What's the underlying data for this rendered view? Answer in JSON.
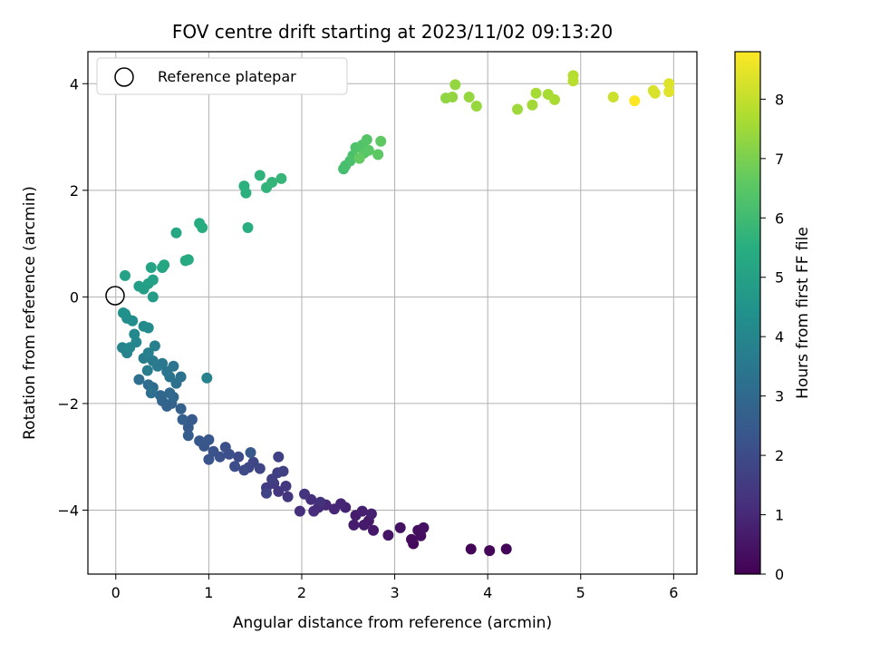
{
  "chart_data": {
    "type": "scatter",
    "title": "FOV centre drift starting at 2023/11/02 09:13:20",
    "xlabel": "Angular distance from reference (arcmin)",
    "ylabel": "Rotation from reference (arcmin)",
    "xlim": [
      -0.3,
      6.25
    ],
    "ylim": [
      -5.2,
      4.6
    ],
    "xticks": [
      "0",
      "1",
      "2",
      "3",
      "4",
      "5",
      "6"
    ],
    "yticks": [
      "−4",
      "−2",
      "0",
      "2",
      "4"
    ],
    "grid": true,
    "legend": {
      "position": "top-left",
      "entries": [
        "Reference platepar"
      ]
    },
    "reference_point": {
      "x": 0,
      "y": 0
    },
    "colorbar": {
      "label": "Hours from first FF file",
      "range": [
        0,
        8.8
      ],
      "ticks": [
        "0",
        "1",
        "2",
        "3",
        "4",
        "5",
        "6",
        "7",
        "8"
      ],
      "colormap": "viridis"
    },
    "points": [
      {
        "x": 3.82,
        "y": -4.73,
        "h": 0.08
      },
      {
        "x": 4.02,
        "y": -4.76,
        "h": 0.1
      },
      {
        "x": 4.2,
        "y": -4.73,
        "h": 0.12
      },
      {
        "x": 3.2,
        "y": -4.63,
        "h": 0.2
      },
      {
        "x": 3.18,
        "y": -4.55,
        "h": 0.25
      },
      {
        "x": 3.28,
        "y": -4.48,
        "h": 0.3
      },
      {
        "x": 3.25,
        "y": -4.38,
        "h": 0.35
      },
      {
        "x": 3.31,
        "y": -4.33,
        "h": 0.4
      },
      {
        "x": 3.06,
        "y": -4.33,
        "h": 0.45
      },
      {
        "x": 2.93,
        "y": -4.47,
        "h": 0.5
      },
      {
        "x": 2.77,
        "y": -4.38,
        "h": 0.55
      },
      {
        "x": 2.72,
        "y": -4.2,
        "h": 0.6
      },
      {
        "x": 2.67,
        "y": -4.28,
        "h": 0.62
      },
      {
        "x": 2.56,
        "y": -4.28,
        "h": 0.68
      },
      {
        "x": 2.58,
        "y": -4.1,
        "h": 0.7
      },
      {
        "x": 2.65,
        "y": -4.02,
        "h": 0.75
      },
      {
        "x": 2.75,
        "y": -4.07,
        "h": 0.8
      },
      {
        "x": 2.47,
        "y": -3.95,
        "h": 0.85
      },
      {
        "x": 2.42,
        "y": -3.88,
        "h": 0.9
      },
      {
        "x": 2.35,
        "y": -3.98,
        "h": 0.95
      },
      {
        "x": 2.26,
        "y": -3.9,
        "h": 1.0
      },
      {
        "x": 2.18,
        "y": -3.95,
        "h": 1.05
      },
      {
        "x": 2.13,
        "y": -4.02,
        "h": 1.1
      },
      {
        "x": 1.98,
        "y": -4.02,
        "h": 1.15
      },
      {
        "x": 2.1,
        "y": -3.8,
        "h": 1.2
      },
      {
        "x": 2.2,
        "y": -3.85,
        "h": 1.25
      },
      {
        "x": 2.03,
        "y": -3.7,
        "h": 1.3
      },
      {
        "x": 1.85,
        "y": -3.75,
        "h": 1.35
      },
      {
        "x": 1.75,
        "y": -3.65,
        "h": 1.4
      },
      {
        "x": 1.83,
        "y": -3.55,
        "h": 1.45
      },
      {
        "x": 1.7,
        "y": -3.5,
        "h": 1.5
      },
      {
        "x": 1.62,
        "y": -3.58,
        "h": 1.55
      },
      {
        "x": 1.68,
        "y": -3.42,
        "h": 1.6
      },
      {
        "x": 1.74,
        "y": -3.3,
        "h": 1.65
      },
      {
        "x": 1.8,
        "y": -3.27,
        "h": 1.68
      },
      {
        "x": 1.75,
        "y": -3.0,
        "h": 1.7
      },
      {
        "x": 1.62,
        "y": -3.68,
        "h": 1.75
      },
      {
        "x": 1.55,
        "y": -3.22,
        "h": 1.8
      },
      {
        "x": 1.48,
        "y": -3.1,
        "h": 1.85
      },
      {
        "x": 1.43,
        "y": -3.2,
        "h": 1.9
      },
      {
        "x": 1.38,
        "y": -3.25,
        "h": 1.95
      },
      {
        "x": 1.32,
        "y": -3.0,
        "h": 2.0
      },
      {
        "x": 1.28,
        "y": -3.18,
        "h": 2.05
      },
      {
        "x": 1.22,
        "y": -2.95,
        "h": 2.1
      },
      {
        "x": 1.18,
        "y": -2.82,
        "h": 2.15
      },
      {
        "x": 1.12,
        "y": -3.0,
        "h": 2.2
      },
      {
        "x": 1.05,
        "y": -2.9,
        "h": 2.25
      },
      {
        "x": 1.0,
        "y": -3.05,
        "h": 2.3
      },
      {
        "x": 0.95,
        "y": -2.8,
        "h": 2.35
      },
      {
        "x": 0.9,
        "y": -2.7,
        "h": 2.4
      },
      {
        "x": 1.0,
        "y": -2.68,
        "h": 2.42
      },
      {
        "x": 1.45,
        "y": -2.92,
        "h": 2.45
      },
      {
        "x": 0.82,
        "y": -2.3,
        "h": 2.5
      },
      {
        "x": 0.78,
        "y": -2.45,
        "h": 2.55
      },
      {
        "x": 0.78,
        "y": -2.6,
        "h": 2.6
      },
      {
        "x": 0.72,
        "y": -2.3,
        "h": 2.65
      },
      {
        "x": 0.7,
        "y": -2.1,
        "h": 2.7
      },
      {
        "x": 0.6,
        "y": -2.0,
        "h": 2.75
      },
      {
        "x": 0.55,
        "y": -2.05,
        "h": 2.8
      },
      {
        "x": 0.5,
        "y": -1.95,
        "h": 2.85
      },
      {
        "x": 0.48,
        "y": -1.85,
        "h": 2.9
      },
      {
        "x": 0.62,
        "y": -1.88,
        "h": 2.95
      },
      {
        "x": 0.58,
        "y": -1.8,
        "h": 3.0
      },
      {
        "x": 0.4,
        "y": -1.7,
        "h": 3.05
      },
      {
        "x": 0.35,
        "y": -1.65,
        "h": 3.1
      },
      {
        "x": 0.25,
        "y": -1.55,
        "h": 3.15
      },
      {
        "x": 0.38,
        "y": -1.8,
        "h": 3.2
      },
      {
        "x": 0.65,
        "y": -1.62,
        "h": 3.25
      },
      {
        "x": 0.7,
        "y": -1.5,
        "h": 3.3
      },
      {
        "x": 0.58,
        "y": -1.5,
        "h": 3.35
      },
      {
        "x": 0.55,
        "y": -1.4,
        "h": 3.4
      },
      {
        "x": 0.62,
        "y": -1.3,
        "h": 3.45
      },
      {
        "x": 0.5,
        "y": -1.25,
        "h": 3.5
      },
      {
        "x": 0.45,
        "y": -1.3,
        "h": 3.55
      },
      {
        "x": 0.4,
        "y": -1.2,
        "h": 3.6
      },
      {
        "x": 0.34,
        "y": -1.38,
        "h": 3.65
      },
      {
        "x": 0.3,
        "y": -1.15,
        "h": 3.7
      },
      {
        "x": 0.35,
        "y": -1.05,
        "h": 3.75
      },
      {
        "x": 0.42,
        "y": -0.92,
        "h": 3.8
      },
      {
        "x": 0.98,
        "y": -1.52,
        "h": 3.85
      },
      {
        "x": 0.12,
        "y": -1.05,
        "h": 3.9
      },
      {
        "x": 0.07,
        "y": -0.95,
        "h": 3.95
      },
      {
        "x": 0.15,
        "y": -0.95,
        "h": 4.0
      },
      {
        "x": 0.22,
        "y": -0.85,
        "h": 4.05
      },
      {
        "x": 0.2,
        "y": -0.7,
        "h": 4.1
      },
      {
        "x": 0.3,
        "y": -0.55,
        "h": 4.15
      },
      {
        "x": 0.35,
        "y": -0.58,
        "h": 4.2
      },
      {
        "x": 0.18,
        "y": -0.45,
        "h": 4.25
      },
      {
        "x": 0.12,
        "y": -0.4,
        "h": 4.3
      },
      {
        "x": 0.1,
        "y": -0.32,
        "h": 4.35
      },
      {
        "x": 0.08,
        "y": -0.3,
        "h": 4.4
      },
      {
        "x": 0.4,
        "y": 0.0,
        "h": 4.8
      },
      {
        "x": 0.3,
        "y": 0.15,
        "h": 4.85
      },
      {
        "x": 0.25,
        "y": 0.2,
        "h": 4.9
      },
      {
        "x": 0.35,
        "y": 0.25,
        "h": 4.95
      },
      {
        "x": 0.4,
        "y": 0.32,
        "h": 5.0
      },
      {
        "x": 0.1,
        "y": 0.4,
        "h": 5.05
      },
      {
        "x": 0.38,
        "y": 0.55,
        "h": 5.1
      },
      {
        "x": 0.5,
        "y": 0.55,
        "h": 5.15
      },
      {
        "x": 0.52,
        "y": 0.6,
        "h": 5.2
      },
      {
        "x": 0.65,
        "y": 1.2,
        "h": 5.25
      },
      {
        "x": 0.75,
        "y": 0.68,
        "h": 5.3
      },
      {
        "x": 0.78,
        "y": 0.7,
        "h": 5.35
      },
      {
        "x": 0.9,
        "y": 1.38,
        "h": 5.4
      },
      {
        "x": 0.93,
        "y": 1.3,
        "h": 5.45
      },
      {
        "x": 1.42,
        "y": 1.3,
        "h": 5.5
      },
      {
        "x": 1.38,
        "y": 2.08,
        "h": 5.55
      },
      {
        "x": 1.4,
        "y": 1.95,
        "h": 5.6
      },
      {
        "x": 1.55,
        "y": 2.28,
        "h": 5.65
      },
      {
        "x": 1.62,
        "y": 2.05,
        "h": 5.7
      },
      {
        "x": 1.68,
        "y": 2.15,
        "h": 5.75
      },
      {
        "x": 1.78,
        "y": 2.22,
        "h": 5.8
      },
      {
        "x": 2.45,
        "y": 2.4,
        "h": 6.1
      },
      {
        "x": 2.47,
        "y": 2.46,
        "h": 6.15
      },
      {
        "x": 2.52,
        "y": 2.55,
        "h": 6.2
      },
      {
        "x": 2.55,
        "y": 2.65,
        "h": 6.25
      },
      {
        "x": 2.58,
        "y": 2.8,
        "h": 6.3
      },
      {
        "x": 2.65,
        "y": 2.85,
        "h": 6.35
      },
      {
        "x": 2.7,
        "y": 2.95,
        "h": 6.4
      },
      {
        "x": 2.67,
        "y": 2.7,
        "h": 6.45
      },
      {
        "x": 2.72,
        "y": 2.75,
        "h": 6.5
      },
      {
        "x": 2.82,
        "y": 2.67,
        "h": 6.55
      },
      {
        "x": 2.85,
        "y": 2.92,
        "h": 6.6
      },
      {
        "x": 2.62,
        "y": 2.6,
        "h": 6.65
      },
      {
        "x": 3.55,
        "y": 3.73,
        "h": 7.3
      },
      {
        "x": 3.62,
        "y": 3.75,
        "h": 7.32
      },
      {
        "x": 3.65,
        "y": 3.98,
        "h": 7.35
      },
      {
        "x": 3.8,
        "y": 3.75,
        "h": 7.38
      },
      {
        "x": 3.88,
        "y": 3.58,
        "h": 7.4
      },
      {
        "x": 4.32,
        "y": 3.52,
        "h": 7.5
      },
      {
        "x": 4.48,
        "y": 3.6,
        "h": 7.55
      },
      {
        "x": 4.52,
        "y": 3.82,
        "h": 7.6
      },
      {
        "x": 4.65,
        "y": 3.8,
        "h": 7.62
      },
      {
        "x": 4.72,
        "y": 3.7,
        "h": 7.65
      },
      {
        "x": 4.92,
        "y": 4.15,
        "h": 7.8
      },
      {
        "x": 4.92,
        "y": 4.05,
        "h": 7.85
      },
      {
        "x": 5.35,
        "y": 3.75,
        "h": 8.1
      },
      {
        "x": 5.78,
        "y": 3.87,
        "h": 8.25
      },
      {
        "x": 5.8,
        "y": 3.82,
        "h": 8.3
      },
      {
        "x": 5.95,
        "y": 4.0,
        "h": 8.35
      },
      {
        "x": 5.95,
        "y": 3.85,
        "h": 8.4
      },
      {
        "x": 5.58,
        "y": 3.68,
        "h": 8.8
      }
    ]
  }
}
